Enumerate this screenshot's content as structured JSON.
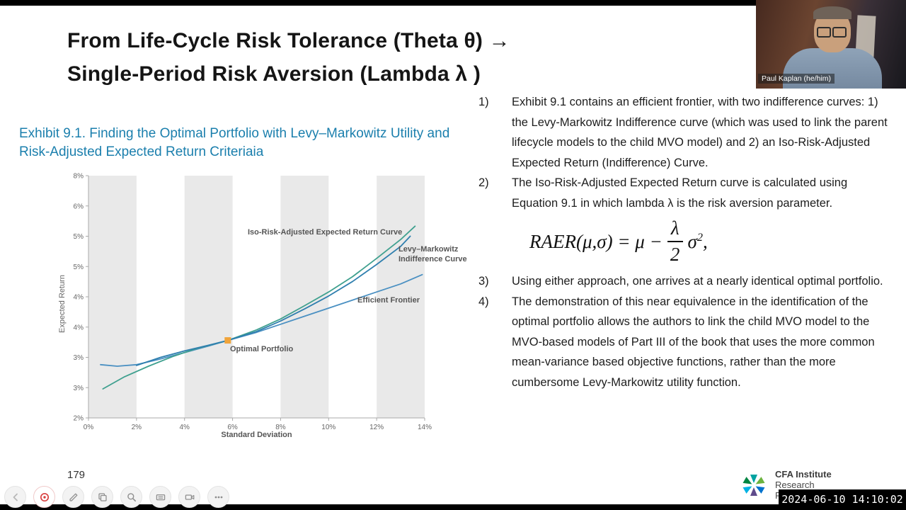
{
  "slide": {
    "title_line1": "From Life-Cycle Risk Tolerance (Theta θ) →",
    "title_line2": "Single-Period Risk Aversion (Lambda λ )",
    "page_number": "179"
  },
  "chart_data": {
    "type": "line",
    "title": "Exhibit 9.1. Finding the Optimal Portfolio with Levy–Markowitz Utility and Risk-Adjusted Expected Return Criteriaia",
    "xlabel": "Standard Deviation",
    "ylabel": "Expected Return",
    "xlim": [
      0,
      14
    ],
    "ylim": [
      2,
      8
    ],
    "x_tick_labels": [
      "0%",
      "2%",
      "4%",
      "6%",
      "8%",
      "10%",
      "12%",
      "14%"
    ],
    "y_tick_labels": [
      "8%",
      "6%",
      "5%",
      "5%",
      "4%",
      "4%",
      "3%",
      "3%",
      "2%"
    ],
    "shaded_bands_x": [
      [
        0,
        2
      ],
      [
        4,
        6
      ],
      [
        8,
        10
      ],
      [
        12,
        14
      ]
    ],
    "grid": false,
    "series": [
      {
        "name": "Efficient Frontier",
        "color": "#4a90c2",
        "points": [
          [
            0.5,
            3.32
          ],
          [
            1.2,
            3.28
          ],
          [
            2,
            3.32
          ],
          [
            3,
            3.46
          ],
          [
            4,
            3.62
          ],
          [
            5,
            3.78
          ],
          [
            5.8,
            3.92
          ],
          [
            7,
            4.12
          ],
          [
            8,
            4.32
          ],
          [
            9,
            4.52
          ],
          [
            10,
            4.72
          ],
          [
            11,
            4.92
          ],
          [
            12,
            5.12
          ],
          [
            13,
            5.32
          ],
          [
            13.9,
            5.55
          ]
        ]
      },
      {
        "name": "Levy–Markowitz Indifference Curve",
        "color": "#3fa08f",
        "points": [
          [
            0.6,
            2.72
          ],
          [
            1.5,
            3.02
          ],
          [
            2.5,
            3.28
          ],
          [
            3.5,
            3.52
          ],
          [
            4.5,
            3.72
          ],
          [
            5.8,
            3.92
          ],
          [
            7,
            4.18
          ],
          [
            8,
            4.45
          ],
          [
            9,
            4.78
          ],
          [
            10,
            5.12
          ],
          [
            11,
            5.5
          ],
          [
            12,
            5.95
          ],
          [
            13,
            6.42
          ],
          [
            13.6,
            6.75
          ]
        ]
      },
      {
        "name": "Iso-Risk-Adjusted Expected Return Curve",
        "color": "#2f7fae",
        "points": [
          [
            2,
            3.3
          ],
          [
            3,
            3.5
          ],
          [
            4,
            3.66
          ],
          [
            5,
            3.8
          ],
          [
            5.8,
            3.92
          ],
          [
            7,
            4.14
          ],
          [
            8,
            4.4
          ],
          [
            9,
            4.7
          ],
          [
            10,
            5.02
          ],
          [
            11,
            5.38
          ],
          [
            12,
            5.8
          ],
          [
            13,
            6.25
          ],
          [
            13.4,
            6.5
          ]
        ]
      }
    ],
    "optimal_point": {
      "x": 5.8,
      "y": 3.92,
      "color": "#f0a43a",
      "label": "Optimal Portfolio"
    },
    "annotations": {
      "iso": "Iso-Risk-Adjusted Expected Return Curve",
      "lm_line1": "Levy–Markowitz",
      "lm_line2": "Indifference Curve",
      "efficient": "Efficient Frontier",
      "optimal": "Optimal Portfolio"
    }
  },
  "notes": {
    "items": [
      {
        "num": "1)",
        "text": "Exhibit 9.1 contains an efficient frontier, with two indifference curves:  1) the Levy-Markowitz Indifference curve (which was used to link the parent lifecycle models to the child MVO model) and 2) an Iso-Risk-Adjusted Expected Return (Indifference) Curve."
      },
      {
        "num": "2)",
        "text": "The Iso-Risk-Adjusted Expected Return curve is calculated using Equation 9.1 in which lambda λ is the risk aversion parameter."
      },
      {
        "num": "3)",
        "text": "Using either approach, one arrives at a nearly identical optimal portfolio."
      },
      {
        "num": "4)",
        "text": "The demonstration of this near equivalence in the identification of the optimal portfolio allows the authors to link the child MVO model to the MVO-based models of Part III of the book that uses the more common mean-variance based objective functions, rather than the more cumbersome Levy-Markowitz utility function."
      }
    ],
    "formula": {
      "left": "RAER(μ,σ) = μ −",
      "numerator": "λ",
      "denominator": "2",
      "base": "σ",
      "exponent": "2",
      "tail": ","
    }
  },
  "webcam": {
    "name_label": "Paul Kaplan (he/him)"
  },
  "toolbar": {
    "buttons": [
      "previous",
      "laser-pointer",
      "draw",
      "copy",
      "zoom",
      "panel",
      "record-video",
      "more"
    ]
  },
  "logo": {
    "line1": "CFA Institute",
    "line2": "Research",
    "line3": "Foundation"
  },
  "timestamp": "2024-06-10 14:10:02"
}
